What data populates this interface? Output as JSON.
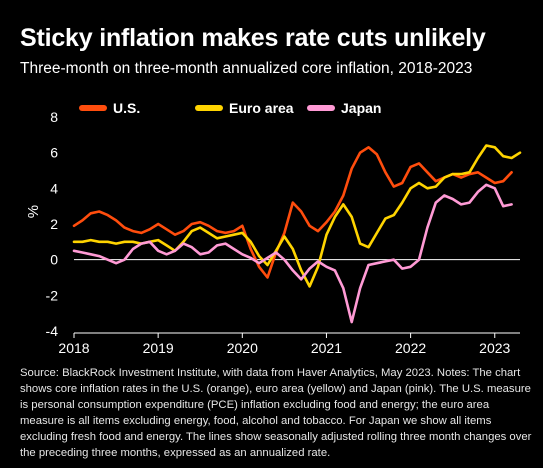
{
  "title": "Sticky inflation makes rate cuts unlikely",
  "subtitle": "Three-month on three-month annualized core inflation, 2018-2023",
  "source": "Source: BlackRock Investment Institute, with data from Haver Analytics, May 2023. Notes: The chart shows core inflation rates in the U.S. (orange), euro area (yellow) and Japan (pink). The U.S. measure is personal consumption expenditure (PCE) inflation excluding food and energy; the euro area measure is all items excluding energy, food, alcohol and tobacco. For Japan we show all items excluding fresh food and energy. The lines show seasonally adjusted rolling three month changes over the preceding three months, expressed as an annualized rate.",
  "chart_data": {
    "type": "line",
    "title": "Sticky inflation makes rate cuts unlikely",
    "ylabel": "%",
    "xlim": [
      2018,
      2023.3
    ],
    "ylim": [
      -4,
      8
    ],
    "y_ticks": [
      -4,
      -2,
      0,
      2,
      4,
      6,
      8
    ],
    "x_ticks": [
      2018,
      2019,
      2020,
      2021,
      2022,
      2023
    ],
    "x_tick_labels": [
      "2018",
      "2019",
      "2020",
      "2021",
      "2022",
      "2023"
    ],
    "grid": false,
    "zero_line": true,
    "legend": "top-left",
    "series": [
      {
        "name": "U.S.",
        "color": "#ff4d0d",
        "points": [
          [
            2018.0,
            1.9
          ],
          [
            2018.1,
            2.2
          ],
          [
            2018.2,
            2.6
          ],
          [
            2018.3,
            2.7
          ],
          [
            2018.4,
            2.5
          ],
          [
            2018.5,
            2.2
          ],
          [
            2018.6,
            1.8
          ],
          [
            2018.7,
            1.6
          ],
          [
            2018.8,
            1.5
          ],
          [
            2018.9,
            1.7
          ],
          [
            2019.0,
            2.0
          ],
          [
            2019.1,
            1.7
          ],
          [
            2019.2,
            1.4
          ],
          [
            2019.3,
            1.6
          ],
          [
            2019.4,
            2.0
          ],
          [
            2019.5,
            2.1
          ],
          [
            2019.6,
            1.9
          ],
          [
            2019.7,
            1.6
          ],
          [
            2019.8,
            1.5
          ],
          [
            2019.9,
            1.6
          ],
          [
            2020.0,
            1.9
          ],
          [
            2020.1,
            0.6
          ],
          [
            2020.2,
            -0.4
          ],
          [
            2020.3,
            -1.0
          ],
          [
            2020.4,
            0.4
          ],
          [
            2020.5,
            1.5
          ],
          [
            2020.6,
            3.2
          ],
          [
            2020.7,
            2.7
          ],
          [
            2020.8,
            1.9
          ],
          [
            2020.9,
            1.6
          ],
          [
            2021.0,
            2.1
          ],
          [
            2021.1,
            2.7
          ],
          [
            2021.2,
            3.6
          ],
          [
            2021.3,
            5.1
          ],
          [
            2021.4,
            6.0
          ],
          [
            2021.5,
            6.3
          ],
          [
            2021.6,
            5.9
          ],
          [
            2021.7,
            4.9
          ],
          [
            2021.8,
            4.1
          ],
          [
            2021.9,
            4.3
          ],
          [
            2022.0,
            5.2
          ],
          [
            2022.1,
            5.4
          ],
          [
            2022.2,
            4.9
          ],
          [
            2022.3,
            4.4
          ],
          [
            2022.4,
            4.6
          ],
          [
            2022.5,
            4.8
          ],
          [
            2022.6,
            4.6
          ],
          [
            2022.7,
            4.8
          ],
          [
            2022.8,
            4.9
          ],
          [
            2022.9,
            4.6
          ],
          [
            2023.0,
            4.3
          ],
          [
            2023.1,
            4.4
          ],
          [
            2023.2,
            4.9
          ]
        ]
      },
      {
        "name": "Euro area",
        "color": "#ffd400",
        "points": [
          [
            2018.0,
            1.0
          ],
          [
            2018.1,
            1.0
          ],
          [
            2018.2,
            1.1
          ],
          [
            2018.3,
            1.0
          ],
          [
            2018.4,
            1.0
          ],
          [
            2018.5,
            0.9
          ],
          [
            2018.6,
            1.0
          ],
          [
            2018.7,
            1.0
          ],
          [
            2018.8,
            0.9
          ],
          [
            2018.9,
            1.0
          ],
          [
            2019.0,
            1.1
          ],
          [
            2019.1,
            0.8
          ],
          [
            2019.2,
            0.5
          ],
          [
            2019.3,
            1.0
          ],
          [
            2019.4,
            1.6
          ],
          [
            2019.5,
            1.8
          ],
          [
            2019.6,
            1.5
          ],
          [
            2019.7,
            1.2
          ],
          [
            2019.8,
            1.3
          ],
          [
            2019.9,
            1.4
          ],
          [
            2020.0,
            1.5
          ],
          [
            2020.1,
            1.0
          ],
          [
            2020.2,
            0.2
          ],
          [
            2020.3,
            -0.3
          ],
          [
            2020.4,
            0.5
          ],
          [
            2020.5,
            1.3
          ],
          [
            2020.6,
            0.6
          ],
          [
            2020.7,
            -0.6
          ],
          [
            2020.8,
            -1.5
          ],
          [
            2020.9,
            -0.4
          ],
          [
            2021.0,
            1.4
          ],
          [
            2021.1,
            2.4
          ],
          [
            2021.2,
            3.1
          ],
          [
            2021.3,
            2.4
          ],
          [
            2021.4,
            0.9
          ],
          [
            2021.5,
            0.7
          ],
          [
            2021.6,
            1.5
          ],
          [
            2021.7,
            2.3
          ],
          [
            2021.8,
            2.5
          ],
          [
            2021.9,
            3.2
          ],
          [
            2022.0,
            4.0
          ],
          [
            2022.1,
            4.3
          ],
          [
            2022.2,
            4.0
          ],
          [
            2022.3,
            4.1
          ],
          [
            2022.4,
            4.6
          ],
          [
            2022.5,
            4.8
          ],
          [
            2022.6,
            4.8
          ],
          [
            2022.7,
            4.9
          ],
          [
            2022.8,
            5.7
          ],
          [
            2022.9,
            6.4
          ],
          [
            2023.0,
            6.3
          ],
          [
            2023.1,
            5.8
          ],
          [
            2023.2,
            5.7
          ],
          [
            2023.3,
            6.0
          ]
        ]
      },
      {
        "name": "Japan",
        "color": "#ff9ad5",
        "points": [
          [
            2018.0,
            0.5
          ],
          [
            2018.1,
            0.4
          ],
          [
            2018.2,
            0.3
          ],
          [
            2018.3,
            0.2
          ],
          [
            2018.4,
            0.0
          ],
          [
            2018.5,
            -0.2
          ],
          [
            2018.6,
            0.0
          ],
          [
            2018.7,
            0.6
          ],
          [
            2018.8,
            0.9
          ],
          [
            2018.9,
            1.0
          ],
          [
            2019.0,
            0.5
          ],
          [
            2019.1,
            0.3
          ],
          [
            2019.2,
            0.5
          ],
          [
            2019.3,
            0.9
          ],
          [
            2019.4,
            0.7
          ],
          [
            2019.5,
            0.3
          ],
          [
            2019.6,
            0.4
          ],
          [
            2019.7,
            0.8
          ],
          [
            2019.8,
            0.9
          ],
          [
            2019.9,
            0.6
          ],
          [
            2020.0,
            0.3
          ],
          [
            2020.1,
            0.1
          ],
          [
            2020.2,
            -0.2
          ],
          [
            2020.3,
            0.1
          ],
          [
            2020.4,
            0.4
          ],
          [
            2020.5,
            0.0
          ],
          [
            2020.6,
            -0.6
          ],
          [
            2020.7,
            -1.1
          ],
          [
            2020.8,
            -0.5
          ],
          [
            2020.9,
            -0.1
          ],
          [
            2021.0,
            -0.4
          ],
          [
            2021.1,
            -0.6
          ],
          [
            2021.2,
            -1.6
          ],
          [
            2021.3,
            -3.5
          ],
          [
            2021.4,
            -1.6
          ],
          [
            2021.5,
            -0.3
          ],
          [
            2021.6,
            -0.2
          ],
          [
            2021.7,
            -0.1
          ],
          [
            2021.8,
            0.0
          ],
          [
            2021.9,
            -0.5
          ],
          [
            2022.0,
            -0.4
          ],
          [
            2022.1,
            0.0
          ],
          [
            2022.2,
            1.8
          ],
          [
            2022.3,
            3.2
          ],
          [
            2022.4,
            3.6
          ],
          [
            2022.5,
            3.4
          ],
          [
            2022.6,
            3.1
          ],
          [
            2022.7,
            3.2
          ],
          [
            2022.8,
            3.8
          ],
          [
            2022.9,
            4.2
          ],
          [
            2023.0,
            4.0
          ],
          [
            2023.1,
            3.0
          ],
          [
            2023.2,
            3.1
          ]
        ]
      }
    ]
  }
}
